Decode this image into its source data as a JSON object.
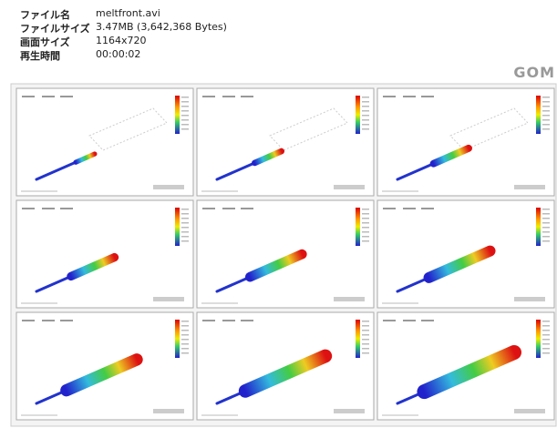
{
  "header": {
    "rows": [
      {
        "label": "ファイル名",
        "value": "meltfront.avi"
      },
      {
        "label": "ファイルサイズ",
        "value": "3.47MB (3,642,368 Bytes)"
      },
      {
        "label": "画面サイズ",
        "value": "1164x720"
      },
      {
        "label": "再生時間",
        "value": "00:00:02"
      }
    ]
  },
  "logo": "GOM"
}
